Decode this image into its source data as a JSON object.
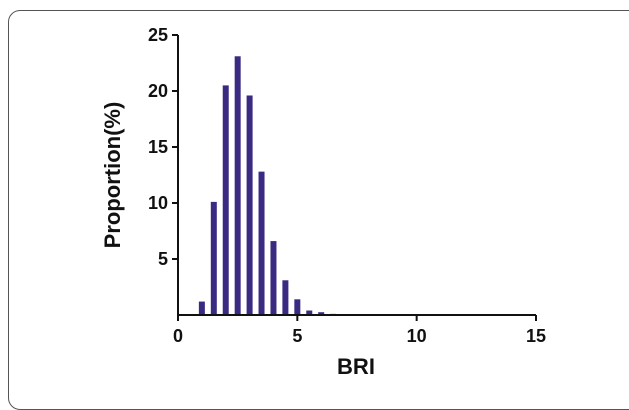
{
  "chart_data": {
    "type": "bar",
    "title": "",
    "xlabel": "BRI",
    "ylabel": "Proportion(%)",
    "xlim": [
      0,
      15
    ],
    "ylim": [
      0,
      25
    ],
    "xticks": [
      "0",
      "5",
      "10",
      "15"
    ],
    "yticks": [
      "5",
      "10",
      "15",
      "20",
      "25"
    ],
    "grid": false,
    "bar_color": "#3b2a82",
    "x": [
      1.0,
      1.5,
      2.0,
      2.5,
      3.0,
      3.5,
      4.0,
      4.5,
      5.0,
      5.5,
      6.0,
      6.5,
      7.0,
      7.5,
      8.0
    ],
    "values": [
      1.2,
      10.1,
      20.5,
      23.1,
      19.6,
      12.8,
      6.6,
      3.1,
      1.4,
      0.4,
      0.25,
      0.1,
      0.05,
      0.05,
      0.03
    ]
  }
}
